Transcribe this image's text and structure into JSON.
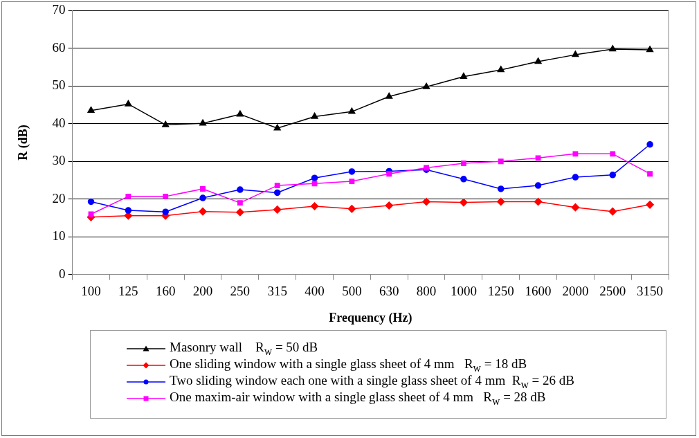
{
  "chart_data": {
    "type": "line",
    "xlabel": "Frequency (Hz)",
    "ylabel": "R (dB)",
    "categories": [
      "100",
      "125",
      "160",
      "200",
      "250",
      "315",
      "400",
      "500",
      "630",
      "800",
      "1000",
      "1250",
      "1600",
      "2000",
      "2500",
      "3150"
    ],
    "ylim": [
      0,
      70
    ],
    "yticks": [
      0,
      10,
      20,
      30,
      40,
      50,
      60,
      70
    ],
    "grid": "y",
    "legend": "bottom",
    "line_style": "solid",
    "series": [
      {
        "name": "Masonry wall    R$_{w}$ = 50 dB",
        "color": "#000000",
        "marker": "triangle",
        "values": [
          43.5,
          45.2,
          39.7,
          40.1,
          42.5,
          38.8,
          41.9,
          43.2,
          47.2,
          49.8,
          52.5,
          54.3,
          56.5,
          58.3,
          59.8,
          59.6
        ]
      },
      {
        "name": "One sliding window with a single glass sheet of 4 mm   R$_{w}$ = 18 dB",
        "color": "#ff0000",
        "marker": "diamond",
        "values": [
          15.2,
          15.6,
          15.6,
          16.7,
          16.5,
          17.2,
          18.1,
          17.4,
          18.3,
          19.3,
          19.1,
          19.3,
          19.3,
          17.8,
          16.7,
          18.5
        ]
      },
      {
        "name": "Two sliding window each one with a single glass sheet of 4 mm  R$_{w}$ = 26 dB",
        "color": "#0000ff",
        "marker": "circle",
        "values": [
          19.3,
          17.0,
          16.6,
          20.3,
          22.5,
          21.7,
          25.6,
          27.3,
          27.4,
          27.8,
          25.3,
          22.7,
          23.6,
          25.8,
          26.4,
          34.5
        ]
      },
      {
        "name": "One maxim-air window with a single glass sheet of 4 mm   R$_{w}$ = 28 dB",
        "color": "#ff00ff",
        "marker": "square",
        "values": [
          16.0,
          20.7,
          20.7,
          22.7,
          19.0,
          23.6,
          24.1,
          24.7,
          26.7,
          28.3,
          29.5,
          30.0,
          30.9,
          32.0,
          32.0,
          26.7
        ]
      }
    ]
  }
}
